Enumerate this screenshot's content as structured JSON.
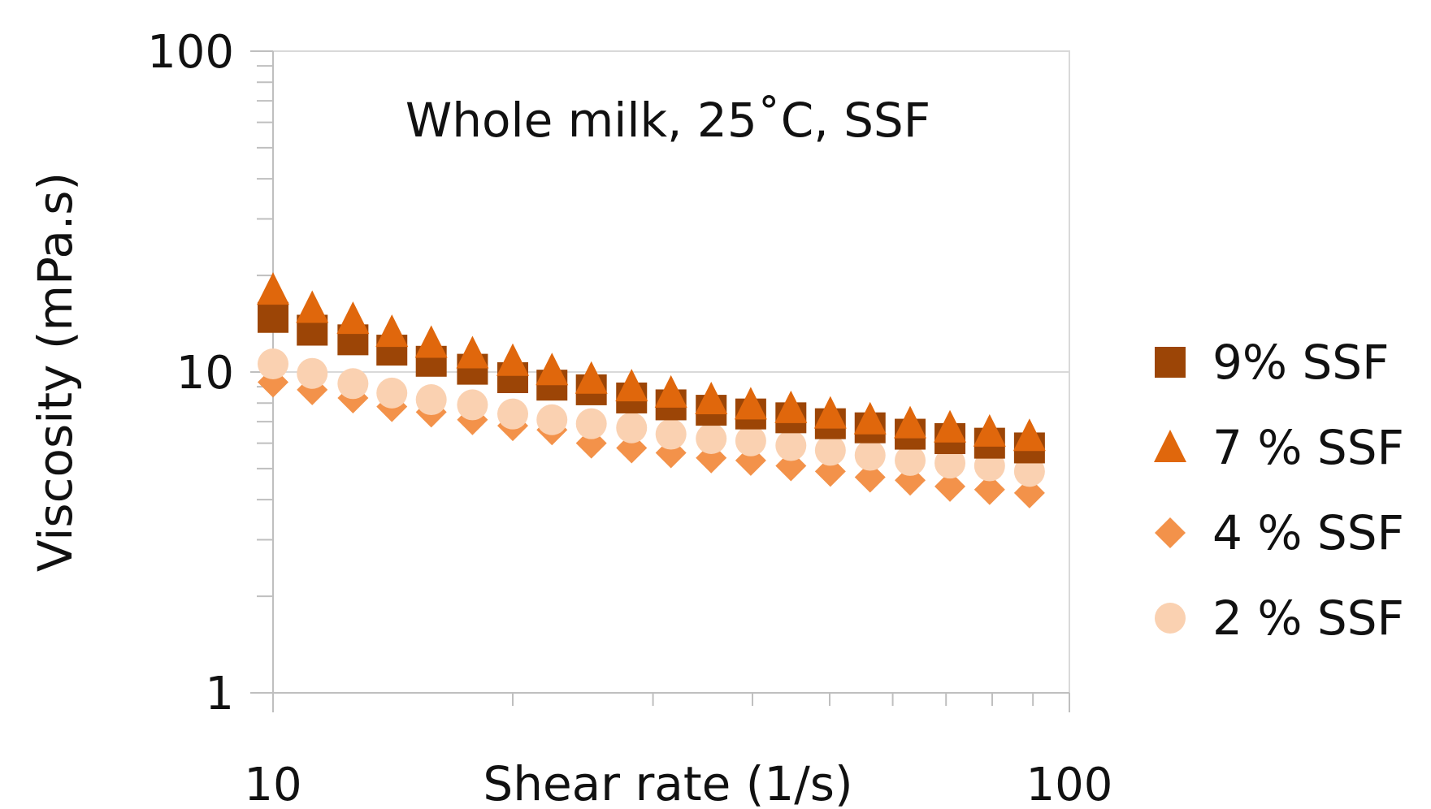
{
  "chart_data": {
    "type": "scatter",
    "title": "Whole milk, 25˚C, SSF",
    "xlabel": "Shear rate (1/s)",
    "ylabel": "Viscosity (mPa.s)",
    "x_scale": "log",
    "y_scale": "log",
    "xlim": [
      10,
      100
    ],
    "ylim": [
      1,
      100
    ],
    "x_ticks": [
      "10",
      "100"
    ],
    "y_ticks": [
      "1",
      "10",
      "100"
    ],
    "grid": "major horizontal",
    "legend_position": "right",
    "x": [
      10,
      11.2,
      12.6,
      14.1,
      15.8,
      17.8,
      20,
      22.4,
      25.1,
      28.2,
      31.6,
      35.5,
      39.8,
      44.7,
      50.1,
      56.2,
      63.1,
      70.8,
      79.4,
      89.1
    ],
    "series": [
      {
        "name": "9% SSF",
        "marker": "square",
        "color": "#9c4506",
        "values": [
          14.8,
          13.5,
          12.6,
          11.7,
          10.8,
          10.2,
          9.6,
          9.1,
          8.8,
          8.3,
          7.9,
          7.6,
          7.4,
          7.2,
          6.9,
          6.7,
          6.4,
          6.2,
          6.0,
          5.8
        ]
      },
      {
        "name": "7 % SSF",
        "marker": "triangle",
        "color": "#e0670c",
        "values": [
          18.0,
          15.8,
          14.6,
          13.3,
          12.3,
          11.4,
          10.8,
          10.1,
          9.5,
          9.0,
          8.6,
          8.2,
          7.9,
          7.7,
          7.4,
          7.1,
          6.9,
          6.7,
          6.5,
          6.3
        ]
      },
      {
        "name": "4 % SSF",
        "marker": "diamond",
        "color": "#f3924a",
        "values": [
          9.3,
          8.8,
          8.3,
          7.8,
          7.5,
          7.1,
          6.8,
          6.6,
          6.0,
          5.8,
          5.6,
          5.4,
          5.3,
          5.1,
          4.9,
          4.7,
          4.6,
          4.4,
          4.3,
          4.2
        ]
      },
      {
        "name": "2 % SSF",
        "marker": "circle",
        "color": "#fad1b1",
        "values": [
          10.6,
          9.9,
          9.2,
          8.6,
          8.2,
          7.9,
          7.4,
          7.1,
          6.9,
          6.7,
          6.4,
          6.2,
          6.1,
          5.9,
          5.7,
          5.5,
          5.3,
          5.2,
          5.1,
          4.9
        ]
      }
    ]
  }
}
